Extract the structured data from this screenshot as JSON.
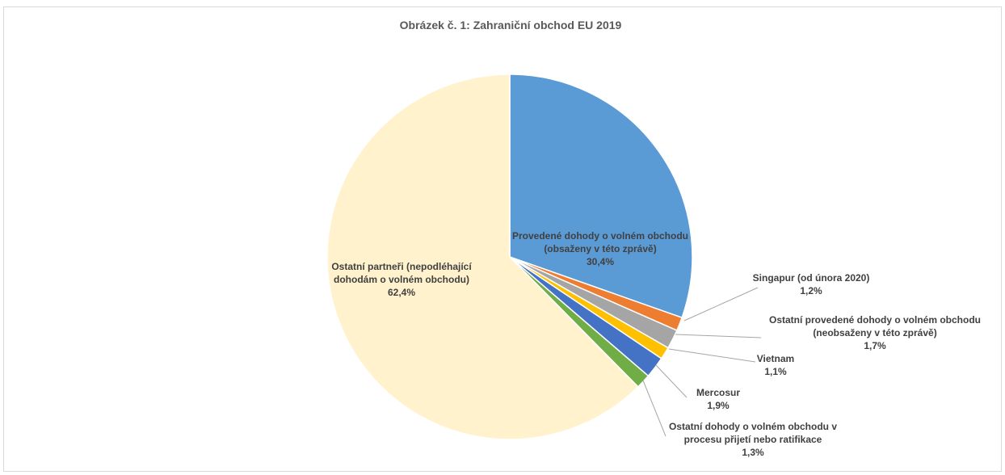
{
  "chart_data": {
    "type": "pie",
    "title": "Obrázek č. 1: Zahraniční obchod EU 2019",
    "slices": [
      {
        "label": "Provedené dohody o volném obchodu (obsaženy v této zprávě)",
        "value": 30.4,
        "value_label": "30,4%",
        "color": "#5b9bd5"
      },
      {
        "label": "Singapur (od února 2020)",
        "value": 1.2,
        "value_label": "1,2%",
        "color": "#ed7d31"
      },
      {
        "label": "Ostatní provedené dohody o volném obchodu (neobsaženy v této zprávě)",
        "value": 1.7,
        "value_label": "1,7%",
        "color": "#a5a5a5"
      },
      {
        "label": "Vietnam",
        "value": 1.1,
        "value_label": "1,1%",
        "color": "#ffc000"
      },
      {
        "label": "Mercosur",
        "value": 1.9,
        "value_label": "1,9%",
        "color": "#4472c4"
      },
      {
        "label": "Ostatní dohody o volném obchodu v procesu přijetí nebo ratifikace",
        "value": 1.3,
        "value_label": "1,3%",
        "color": "#70ad47"
      },
      {
        "label": "Ostatní partneři (nepodléhající dohodám o volném obchodu)",
        "value": 62.4,
        "value_label": "62,4%",
        "color": "#fff2cc"
      }
    ]
  }
}
